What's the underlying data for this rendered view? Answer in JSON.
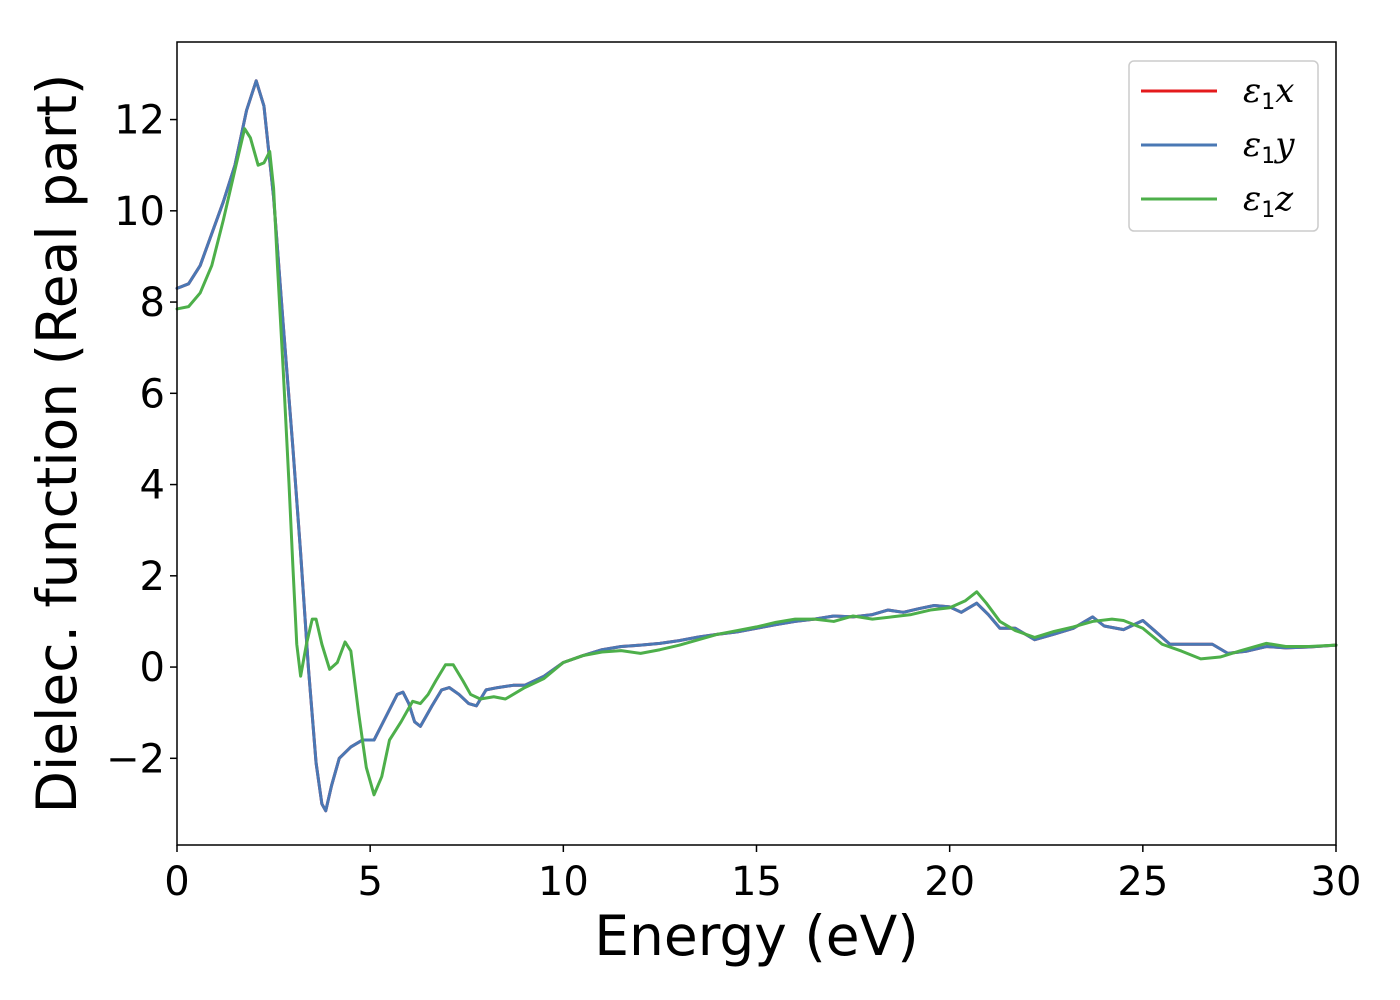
{
  "chart_data": {
    "type": "line",
    "xlabel": "Energy (eV)",
    "ylabel": "Dielec. function (Real part)",
    "xlim": [
      0,
      30
    ],
    "ylim": [
      -3.9,
      13.7
    ],
    "xticks": [
      0,
      5,
      10,
      15,
      20,
      25,
      30
    ],
    "yticks": [
      -2,
      0,
      2,
      4,
      6,
      8,
      10,
      12
    ],
    "xtick_labels": [
      "0",
      "5",
      "10",
      "15",
      "20",
      "25",
      "30"
    ],
    "ytick_labels": [
      "−2",
      "0",
      "2",
      "4",
      "6",
      "8",
      "10",
      "12"
    ],
    "grid": false,
    "legend_position": "top-right",
    "series": [
      {
        "name": "ε₁x",
        "legend": {
          "base": "ε",
          "sub": "1",
          "suffix": "x"
        },
        "color": "#e41a1c",
        "points": [
          [
            0,
            8.3
          ],
          [
            0.3,
            8.4
          ],
          [
            0.6,
            8.8
          ],
          [
            0.9,
            9.5
          ],
          [
            1.2,
            10.2
          ],
          [
            1.5,
            11.0
          ],
          [
            1.8,
            12.2
          ],
          [
            2.05,
            12.85
          ],
          [
            2.25,
            12.3
          ],
          [
            2.5,
            10.3
          ],
          [
            2.75,
            7.5
          ],
          [
            3.0,
            4.8
          ],
          [
            3.2,
            2.5
          ],
          [
            3.4,
            0.0
          ],
          [
            3.6,
            -2.1
          ],
          [
            3.75,
            -3.0
          ],
          [
            3.85,
            -3.15
          ],
          [
            4.0,
            -2.6
          ],
          [
            4.2,
            -2.0
          ],
          [
            4.5,
            -1.75
          ],
          [
            4.8,
            -1.6
          ],
          [
            5.1,
            -1.6
          ],
          [
            5.4,
            -1.1
          ],
          [
            5.7,
            -0.6
          ],
          [
            5.85,
            -0.55
          ],
          [
            6.0,
            -0.8
          ],
          [
            6.15,
            -1.2
          ],
          [
            6.3,
            -1.3
          ],
          [
            6.6,
            -0.85
          ],
          [
            6.85,
            -0.5
          ],
          [
            7.05,
            -0.45
          ],
          [
            7.3,
            -0.6
          ],
          [
            7.55,
            -0.8
          ],
          [
            7.75,
            -0.85
          ],
          [
            8.0,
            -0.5
          ],
          [
            8.3,
            -0.45
          ],
          [
            8.7,
            -0.4
          ],
          [
            9.0,
            -0.4
          ],
          [
            9.5,
            -0.2
          ],
          [
            10.0,
            0.1
          ],
          [
            10.5,
            0.25
          ],
          [
            11.0,
            0.38
          ],
          [
            11.5,
            0.45
          ],
          [
            12.0,
            0.48
          ],
          [
            12.5,
            0.52
          ],
          [
            13.0,
            0.58
          ],
          [
            13.5,
            0.66
          ],
          [
            14.0,
            0.72
          ],
          [
            14.5,
            0.77
          ],
          [
            15.0,
            0.85
          ],
          [
            15.5,
            0.93
          ],
          [
            16.0,
            1.0
          ],
          [
            16.5,
            1.05
          ],
          [
            17.0,
            1.12
          ],
          [
            17.5,
            1.1
          ],
          [
            18.0,
            1.15
          ],
          [
            18.4,
            1.25
          ],
          [
            18.8,
            1.2
          ],
          [
            19.2,
            1.28
          ],
          [
            19.6,
            1.35
          ],
          [
            20.0,
            1.32
          ],
          [
            20.3,
            1.2
          ],
          [
            20.7,
            1.4
          ],
          [
            21.0,
            1.15
          ],
          [
            21.3,
            0.85
          ],
          [
            21.7,
            0.85
          ],
          [
            22.2,
            0.6
          ],
          [
            22.7,
            0.72
          ],
          [
            23.2,
            0.85
          ],
          [
            23.7,
            1.1
          ],
          [
            24.0,
            0.9
          ],
          [
            24.5,
            0.82
          ],
          [
            25.0,
            1.02
          ],
          [
            25.3,
            0.8
          ],
          [
            25.7,
            0.5
          ],
          [
            26.3,
            0.5
          ],
          [
            26.8,
            0.5
          ],
          [
            27.2,
            0.3
          ],
          [
            27.7,
            0.35
          ],
          [
            28.2,
            0.45
          ],
          [
            28.7,
            0.42
          ],
          [
            29.3,
            0.44
          ],
          [
            30.0,
            0.48
          ]
        ]
      },
      {
        "name": "ε₁y",
        "legend": {
          "base": "ε",
          "sub": "1",
          "suffix": "y"
        },
        "color": "#4a78b4",
        "points": [
          [
            0,
            8.3
          ],
          [
            0.3,
            8.4
          ],
          [
            0.6,
            8.8
          ],
          [
            0.9,
            9.5
          ],
          [
            1.2,
            10.2
          ],
          [
            1.5,
            11.0
          ],
          [
            1.8,
            12.2
          ],
          [
            2.05,
            12.85
          ],
          [
            2.25,
            12.3
          ],
          [
            2.5,
            10.3
          ],
          [
            2.75,
            7.5
          ],
          [
            3.0,
            4.8
          ],
          [
            3.2,
            2.5
          ],
          [
            3.4,
            0.0
          ],
          [
            3.6,
            -2.1
          ],
          [
            3.75,
            -3.0
          ],
          [
            3.85,
            -3.15
          ],
          [
            4.0,
            -2.6
          ],
          [
            4.2,
            -2.0
          ],
          [
            4.5,
            -1.75
          ],
          [
            4.8,
            -1.6
          ],
          [
            5.1,
            -1.6
          ],
          [
            5.4,
            -1.1
          ],
          [
            5.7,
            -0.6
          ],
          [
            5.85,
            -0.55
          ],
          [
            6.0,
            -0.8
          ],
          [
            6.15,
            -1.2
          ],
          [
            6.3,
            -1.3
          ],
          [
            6.6,
            -0.85
          ],
          [
            6.85,
            -0.5
          ],
          [
            7.05,
            -0.45
          ],
          [
            7.3,
            -0.6
          ],
          [
            7.55,
            -0.8
          ],
          [
            7.75,
            -0.85
          ],
          [
            8.0,
            -0.5
          ],
          [
            8.3,
            -0.45
          ],
          [
            8.7,
            -0.4
          ],
          [
            9.0,
            -0.4
          ],
          [
            9.5,
            -0.2
          ],
          [
            10.0,
            0.1
          ],
          [
            10.5,
            0.25
          ],
          [
            11.0,
            0.38
          ],
          [
            11.5,
            0.45
          ],
          [
            12.0,
            0.48
          ],
          [
            12.5,
            0.52
          ],
          [
            13.0,
            0.58
          ],
          [
            13.5,
            0.66
          ],
          [
            14.0,
            0.72
          ],
          [
            14.5,
            0.77
          ],
          [
            15.0,
            0.85
          ],
          [
            15.5,
            0.93
          ],
          [
            16.0,
            1.0
          ],
          [
            16.5,
            1.05
          ],
          [
            17.0,
            1.12
          ],
          [
            17.5,
            1.1
          ],
          [
            18.0,
            1.15
          ],
          [
            18.4,
            1.25
          ],
          [
            18.8,
            1.2
          ],
          [
            19.2,
            1.28
          ],
          [
            19.6,
            1.35
          ],
          [
            20.0,
            1.32
          ],
          [
            20.3,
            1.2
          ],
          [
            20.7,
            1.4
          ],
          [
            21.0,
            1.15
          ],
          [
            21.3,
            0.85
          ],
          [
            21.7,
            0.85
          ],
          [
            22.2,
            0.6
          ],
          [
            22.7,
            0.72
          ],
          [
            23.2,
            0.85
          ],
          [
            23.7,
            1.1
          ],
          [
            24.0,
            0.9
          ],
          [
            24.5,
            0.82
          ],
          [
            25.0,
            1.02
          ],
          [
            25.3,
            0.8
          ],
          [
            25.7,
            0.5
          ],
          [
            26.3,
            0.5
          ],
          [
            26.8,
            0.5
          ],
          [
            27.2,
            0.3
          ],
          [
            27.7,
            0.35
          ],
          [
            28.2,
            0.45
          ],
          [
            28.7,
            0.42
          ],
          [
            29.3,
            0.44
          ],
          [
            30.0,
            0.48
          ]
        ]
      },
      {
        "name": "ε₁z",
        "legend": {
          "base": "ε",
          "sub": "1",
          "suffix": "z"
        },
        "color": "#4daf4a",
        "points": [
          [
            0,
            7.85
          ],
          [
            0.3,
            7.9
          ],
          [
            0.6,
            8.2
          ],
          [
            0.9,
            8.8
          ],
          [
            1.2,
            9.8
          ],
          [
            1.5,
            10.9
          ],
          [
            1.75,
            11.8
          ],
          [
            1.9,
            11.6
          ],
          [
            2.1,
            11.0
          ],
          [
            2.25,
            11.05
          ],
          [
            2.4,
            11.3
          ],
          [
            2.5,
            10.5
          ],
          [
            2.6,
            8.8
          ],
          [
            2.75,
            6.5
          ],
          [
            2.9,
            4.0
          ],
          [
            3.0,
            2.2
          ],
          [
            3.1,
            0.5
          ],
          [
            3.2,
            -0.2
          ],
          [
            3.35,
            0.5
          ],
          [
            3.5,
            1.05
          ],
          [
            3.6,
            1.05
          ],
          [
            3.75,
            0.5
          ],
          [
            3.95,
            -0.05
          ],
          [
            4.15,
            0.1
          ],
          [
            4.35,
            0.55
          ],
          [
            4.5,
            0.35
          ],
          [
            4.7,
            -1.0
          ],
          [
            4.9,
            -2.2
          ],
          [
            5.1,
            -2.8
          ],
          [
            5.3,
            -2.4
          ],
          [
            5.5,
            -1.6
          ],
          [
            5.8,
            -1.2
          ],
          [
            6.1,
            -0.75
          ],
          [
            6.3,
            -0.8
          ],
          [
            6.5,
            -0.6
          ],
          [
            6.7,
            -0.3
          ],
          [
            6.95,
            0.05
          ],
          [
            7.15,
            0.05
          ],
          [
            7.4,
            -0.3
          ],
          [
            7.6,
            -0.6
          ],
          [
            7.85,
            -0.7
          ],
          [
            8.2,
            -0.65
          ],
          [
            8.5,
            -0.7
          ],
          [
            9.0,
            -0.45
          ],
          [
            9.5,
            -0.25
          ],
          [
            10.0,
            0.1
          ],
          [
            10.5,
            0.25
          ],
          [
            11.0,
            0.33
          ],
          [
            11.5,
            0.36
          ],
          [
            12.0,
            0.3
          ],
          [
            12.5,
            0.38
          ],
          [
            13.0,
            0.48
          ],
          [
            13.5,
            0.6
          ],
          [
            14.0,
            0.72
          ],
          [
            14.5,
            0.8
          ],
          [
            15.0,
            0.88
          ],
          [
            15.5,
            0.98
          ],
          [
            16.0,
            1.05
          ],
          [
            16.5,
            1.05
          ],
          [
            17.0,
            1.0
          ],
          [
            17.5,
            1.12
          ],
          [
            18.0,
            1.05
          ],
          [
            18.5,
            1.1
          ],
          [
            19.0,
            1.15
          ],
          [
            19.5,
            1.25
          ],
          [
            20.0,
            1.3
          ],
          [
            20.4,
            1.45
          ],
          [
            20.7,
            1.65
          ],
          [
            20.95,
            1.4
          ],
          [
            21.3,
            1.0
          ],
          [
            21.7,
            0.8
          ],
          [
            22.2,
            0.65
          ],
          [
            22.7,
            0.78
          ],
          [
            23.2,
            0.88
          ],
          [
            23.7,
            1.0
          ],
          [
            24.2,
            1.05
          ],
          [
            24.5,
            1.02
          ],
          [
            25.0,
            0.85
          ],
          [
            25.5,
            0.5
          ],
          [
            26.0,
            0.35
          ],
          [
            26.5,
            0.18
          ],
          [
            27.0,
            0.22
          ],
          [
            27.5,
            0.35
          ],
          [
            28.2,
            0.52
          ],
          [
            28.7,
            0.45
          ],
          [
            29.3,
            0.45
          ],
          [
            30.0,
            0.48
          ]
        ]
      }
    ]
  }
}
